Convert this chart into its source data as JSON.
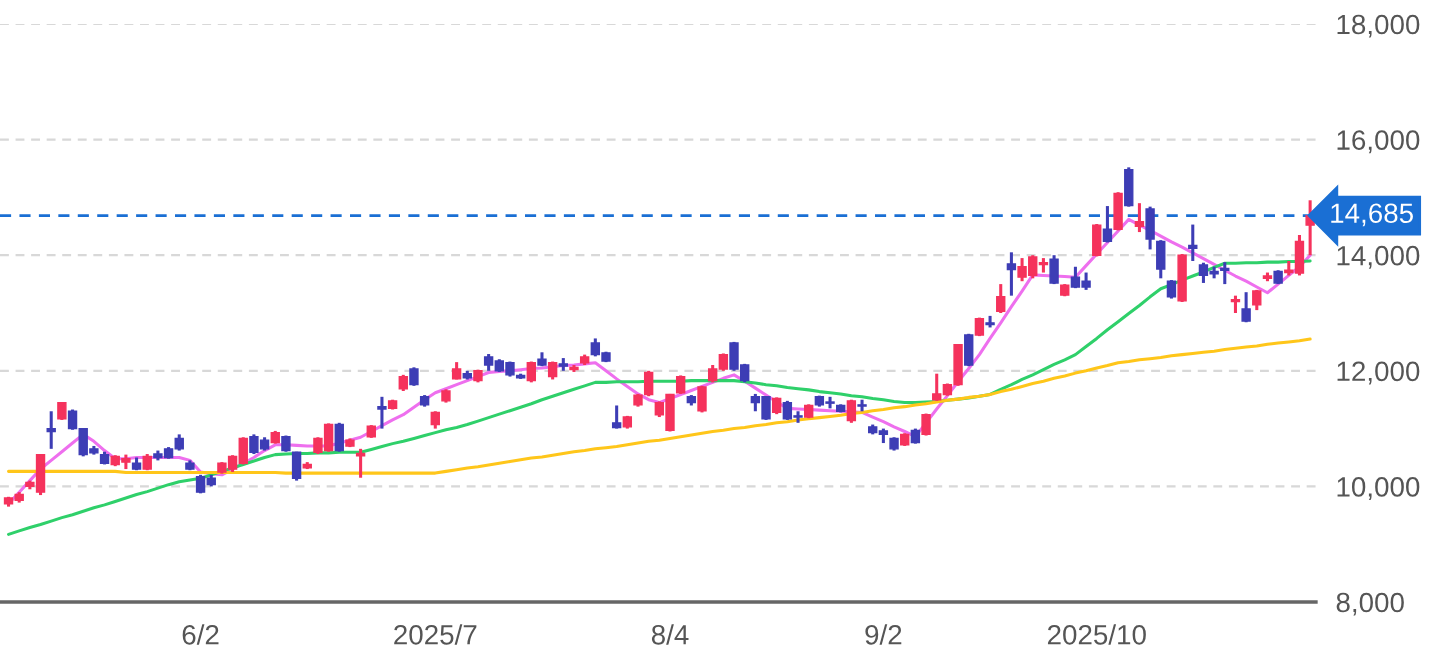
{
  "chart_data": {
    "type": "candlestick",
    "categories": [
      null,
      null,
      null,
      null,
      null,
      null,
      null,
      null,
      null,
      null,
      null,
      null,
      null,
      null,
      null,
      null,
      null,
      null,
      "6/2",
      null,
      null,
      null,
      null,
      null,
      null,
      null,
      null,
      null,
      null,
      null,
      null,
      null,
      null,
      null,
      null,
      null,
      null,
      null,
      null,
      null,
      "2025/7",
      null,
      null,
      null,
      null,
      null,
      null,
      null,
      null,
      null,
      null,
      null,
      null,
      null,
      null,
      null,
      null,
      null,
      null,
      null,
      null,
      null,
      "8/4",
      null,
      null,
      null,
      null,
      null,
      null,
      null,
      null,
      null,
      null,
      null,
      null,
      null,
      null,
      null,
      null,
      null,
      null,
      null,
      "9/2",
      null,
      null,
      null,
      null,
      null,
      null,
      null,
      null,
      null,
      null,
      null,
      null,
      null,
      null,
      null,
      null,
      null,
      null,
      null,
      "2025/10",
      null,
      null,
      null,
      null,
      null,
      null,
      null,
      null,
      null,
      null,
      null,
      null,
      null,
      null,
      null,
      null,
      null,
      null,
      null,
      null
    ],
    "ohlc": [
      [
        9700,
        9820,
        9650,
        9800
      ],
      [
        9760,
        9900,
        9720,
        9860
      ],
      [
        10000,
        10100,
        9950,
        10070
      ],
      [
        9900,
        10550,
        9850,
        10550
      ],
      [
        11000,
        11300,
        10650,
        10950
      ],
      [
        11170,
        11460,
        11150,
        11450
      ],
      [
        11300,
        11330,
        10980,
        11000
      ],
      [
        11000,
        11000,
        10520,
        10550
      ],
      [
        10650,
        10700,
        10550,
        10580
      ],
      [
        10550,
        10600,
        10380,
        10400
      ],
      [
        10380,
        10540,
        10350,
        10520
      ],
      [
        10420,
        10550,
        10300,
        10480
      ],
      [
        10400,
        10500,
        10280,
        10300
      ],
      [
        10300,
        10560,
        10280,
        10520
      ],
      [
        10560,
        10620,
        10450,
        10500
      ],
      [
        10650,
        10680,
        10480,
        10500
      ],
      [
        10830,
        10900,
        10620,
        10650
      ],
      [
        10400,
        10450,
        10280,
        10300
      ],
      [
        10170,
        10200,
        9880,
        9900
      ],
      [
        10140,
        10200,
        10000,
        10030
      ],
      [
        10250,
        10420,
        10220,
        10400
      ],
      [
        10300,
        10540,
        10250,
        10520
      ],
      [
        10400,
        10850,
        10380,
        10830
      ],
      [
        10860,
        10900,
        10560,
        10590
      ],
      [
        10800,
        10850,
        10620,
        10650
      ],
      [
        10760,
        10960,
        10740,
        10930
      ],
      [
        10860,
        10880,
        10600,
        10620
      ],
      [
        10590,
        10600,
        10100,
        10140
      ],
      [
        10320,
        10420,
        10300,
        10380
      ],
      [
        10590,
        10850,
        10560,
        10830
      ],
      [
        10620,
        11090,
        10600,
        11070
      ],
      [
        11070,
        11100,
        10600,
        10620
      ],
      [
        10700,
        10830,
        10680,
        10800
      ],
      [
        10530,
        10650,
        10150,
        10570
      ],
      [
        10860,
        11060,
        10840,
        11040
      ],
      [
        11380,
        11550,
        11000,
        11340
      ],
      [
        11350,
        11500,
        11330,
        11480
      ],
      [
        11690,
        11930,
        11650,
        11900
      ],
      [
        12030,
        12060,
        11740,
        11760
      ],
      [
        11550,
        11580,
        11380,
        11410
      ],
      [
        11070,
        11300,
        11000,
        11280
      ],
      [
        11480,
        11680,
        11450,
        11650
      ],
      [
        11860,
        12150,
        11850,
        12030
      ],
      [
        11950,
        12000,
        11850,
        11880
      ],
      [
        11830,
        12020,
        11800,
        12000
      ],
      [
        12240,
        12290,
        12000,
        12100
      ],
      [
        12170,
        12200,
        11980,
        12000
      ],
      [
        12140,
        12160,
        11900,
        11930
      ],
      [
        11920,
        11950,
        11860,
        11880
      ],
      [
        11830,
        12160,
        11800,
        12140
      ],
      [
        12200,
        12320,
        12080,
        12100
      ],
      [
        11900,
        12160,
        11850,
        12140
      ],
      [
        12120,
        12220,
        12000,
        12080
      ],
      [
        12020,
        12100,
        11980,
        12060
      ],
      [
        12140,
        12280,
        12100,
        12240
      ],
      [
        12480,
        12560,
        12250,
        12280
      ],
      [
        12310,
        12330,
        12150,
        12170
      ],
      [
        11100,
        11400,
        11000,
        11020
      ],
      [
        11030,
        11220,
        11000,
        11200
      ],
      [
        11410,
        11600,
        11380,
        11580
      ],
      [
        11590,
        12000,
        11560,
        11970
      ],
      [
        11240,
        11470,
        11200,
        11450
      ],
      [
        10970,
        11600,
        10950,
        11590
      ],
      [
        11620,
        11920,
        11600,
        11900
      ],
      [
        11550,
        11580,
        11400,
        11450
      ],
      [
        11310,
        11740,
        11280,
        11720
      ],
      [
        11830,
        12100,
        11800,
        12030
      ],
      [
        12030,
        12300,
        12000,
        12280
      ],
      [
        12480,
        12500,
        12000,
        12030
      ],
      [
        12100,
        12120,
        11800,
        11830
      ],
      [
        11550,
        11600,
        11300,
        11450
      ],
      [
        11550,
        11560,
        11150,
        11170
      ],
      [
        11280,
        11540,
        11250,
        11520
      ],
      [
        11450,
        11480,
        11150,
        11170
      ],
      [
        11220,
        11300,
        11100,
        11200
      ],
      [
        11200,
        11420,
        11180,
        11400
      ],
      [
        11550,
        11570,
        11380,
        11410
      ],
      [
        11460,
        11550,
        11350,
        11440
      ],
      [
        11400,
        11420,
        11280,
        11300
      ],
      [
        11140,
        11500,
        11100,
        11480
      ],
      [
        11410,
        11500,
        11300,
        11390
      ],
      [
        11030,
        11070,
        10900,
        10930
      ],
      [
        10960,
        11000,
        10750,
        10900
      ],
      [
        10830,
        10850,
        10620,
        10650
      ],
      [
        10720,
        10920,
        10700,
        10900
      ],
      [
        10970,
        11000,
        10740,
        10760
      ],
      [
        10900,
        11260,
        10880,
        11240
      ],
      [
        11500,
        11950,
        11480,
        11600
      ],
      [
        11590,
        11780,
        11570,
        11760
      ],
      [
        11760,
        12460,
        11740,
        12450
      ],
      [
        12620,
        12640,
        12080,
        12100
      ],
      [
        12620,
        12920,
        12600,
        12900
      ],
      [
        12830,
        12950,
        12750,
        12800
      ],
      [
        13030,
        13500,
        13000,
        13280
      ],
      [
        13850,
        14050,
        13300,
        13750
      ],
      [
        13620,
        13950,
        13550,
        13800
      ],
      [
        13650,
        14000,
        13600,
        13970
      ],
      [
        13840,
        13950,
        13700,
        13870
      ],
      [
        13930,
        14000,
        13500,
        13520
      ],
      [
        13310,
        13500,
        13290,
        13480
      ],
      [
        13620,
        13800,
        13430,
        13450
      ],
      [
        13550,
        13700,
        13400,
        13450
      ],
      [
        14000,
        14540,
        13980,
        14520
      ],
      [
        14450,
        14850,
        14220,
        14240
      ],
      [
        14450,
        15090,
        14430,
        15070
      ],
      [
        15480,
        15520,
        14840,
        14860
      ],
      [
        14500,
        14900,
        14400,
        14580
      ],
      [
        14800,
        14840,
        14100,
        14280
      ],
      [
        14240,
        14260,
        13600,
        13760
      ],
      [
        13550,
        13570,
        13250,
        13280
      ],
      [
        13210,
        14020,
        13190,
        14000
      ],
      [
        14170,
        14530,
        13900,
        14120
      ],
      [
        13830,
        13870,
        13520,
        13650
      ],
      [
        13720,
        13800,
        13600,
        13680
      ],
      [
        13770,
        13880,
        13500,
        13740
      ],
      [
        13200,
        13300,
        13000,
        13230
      ],
      [
        13070,
        13360,
        12840,
        12860
      ],
      [
        13140,
        13400,
        13050,
        13380
      ],
      [
        13600,
        13700,
        13550,
        13640
      ],
      [
        13720,
        13740,
        13500,
        13520
      ],
      [
        13700,
        13900,
        13650,
        13740
      ],
      [
        13690,
        14350,
        13650,
        14240
      ],
      [
        14520,
        14950,
        14000,
        14685
      ]
    ],
    "colors": [
      "#f5325c",
      "#f5325c",
      "#f5325c",
      "#f5325c",
      "#3d3db5",
      "#f5325c",
      "#3d3db5",
      "#3d3db5",
      "#3d3db5",
      "#3d3db5",
      "#f5325c",
      "#f5325c",
      "#3d3db5",
      "#f5325c",
      "#3d3db5",
      "#3d3db5",
      "#3d3db5",
      "#3d3db5",
      "#3d3db5",
      "#3d3db5",
      "#f5325c",
      "#f5325c",
      "#f5325c",
      "#3d3db5",
      "#3d3db5",
      "#f5325c",
      "#3d3db5",
      "#3d3db5",
      "#f5325c",
      "#f5325c",
      "#f5325c",
      "#3d3db5",
      "#f5325c",
      "#f5325c",
      "#f5325c",
      "#3d3db5",
      "#f5325c",
      "#f5325c",
      "#3d3db5",
      "#3d3db5",
      "#f5325c",
      "#f5325c",
      "#f5325c",
      "#3d3db5",
      "#f5325c",
      "#3d3db5",
      "#3d3db5",
      "#3d3db5",
      "#3d3db5",
      "#f5325c",
      "#3d3db5",
      "#f5325c",
      "#3d3db5",
      "#f5325c",
      "#f5325c",
      "#3d3db5",
      "#3d3db5",
      "#3d3db5",
      "#f5325c",
      "#f5325c",
      "#f5325c",
      "#f5325c",
      "#f5325c",
      "#f5325c",
      "#3d3db5",
      "#f5325c",
      "#f5325c",
      "#f5325c",
      "#3d3db5",
      "#3d3db5",
      "#3d3db5",
      "#3d3db5",
      "#f5325c",
      "#3d3db5",
      "#3d3db5",
      "#f5325c",
      "#3d3db5",
      "#3d3db5",
      "#3d3db5",
      "#f5325c",
      "#3d3db5",
      "#3d3db5",
      "#3d3db5",
      "#3d3db5",
      "#f5325c",
      "#3d3db5",
      "#f5325c",
      "#f5325c",
      "#f5325c",
      "#f5325c",
      "#3d3db5",
      "#f5325c",
      "#3d3db5",
      "#f5325c",
      "#3d3db5",
      "#f5325c",
      "#f5325c",
      "#f5325c",
      "#3d3db5",
      "#f5325c",
      "#3d3db5",
      "#3d3db5",
      "#f5325c",
      "#3d3db5",
      "#f5325c",
      "#3d3db5",
      "#f5325c",
      "#3d3db5",
      "#3d3db5",
      "#3d3db5",
      "#f5325c",
      "#3d3db5",
      "#3d3db5",
      "#3d3db5",
      "#3d3db5",
      "#f5325c",
      "#3d3db5",
      "#f5325c",
      "#f5325c",
      "#3d3db5",
      "#f5325c",
      "#f5325c",
      "#f5325c"
    ],
    "series": [
      {
        "type": "line",
        "color": "#ee6fee",
        "values": [
          9700,
          9900,
          10100,
          10300,
          10450,
          10600,
          10750,
          10900,
          10780,
          10620,
          10480,
          10480,
          10500,
          10500,
          10500,
          10500,
          10500,
          10450,
          10250,
          10220,
          10200,
          10300,
          10400,
          10500,
          10620,
          10720,
          10720,
          10710,
          10700,
          10700,
          10700,
          10750,
          10800,
          10850,
          10950,
          11050,
          11150,
          11240,
          11370,
          11500,
          11620,
          11690,
          11760,
          11830,
          11900,
          11970,
          11990,
          12000,
          12020,
          12040,
          12050,
          12070,
          12090,
          12100,
          12120,
          12140,
          12000,
          11860,
          11730,
          11600,
          11500,
          11450,
          11520,
          11590,
          11660,
          11730,
          11800,
          11870,
          11930,
          11820,
          11700,
          11580,
          11460,
          11350,
          11340,
          11330,
          11320,
          11310,
          11300,
          11290,
          11280,
          11200,
          11120,
          11030,
          10950,
          10860,
          11100,
          11340,
          11570,
          11810,
          12040,
          12280,
          12560,
          12830,
          13110,
          13380,
          13660,
          13650,
          13640,
          13630,
          13620,
          13820,
          14020,
          14220,
          14420,
          14620,
          14520,
          14430,
          14330,
          14230,
          14140,
          14040,
          13940,
          13840,
          13740,
          13640,
          13550,
          13450,
          13350,
          13500,
          13650,
          13800,
          14000
        ]
      },
      {
        "type": "line",
        "color": "#2fd06a",
        "values": [
          9170,
          9230,
          9290,
          9340,
          9400,
          9460,
          9510,
          9570,
          9630,
          9680,
          9740,
          9800,
          9860,
          9910,
          9970,
          10030,
          10080,
          10110,
          10140,
          10200,
          10260,
          10320,
          10380,
          10440,
          10500,
          10550,
          10560,
          10570,
          10570,
          10580,
          10580,
          10590,
          10590,
          10590,
          10640,
          10690,
          10740,
          10780,
          10830,
          10880,
          10930,
          10980,
          11020,
          11070,
          11130,
          11190,
          11250,
          11310,
          11370,
          11430,
          11500,
          11560,
          11620,
          11680,
          11740,
          11800,
          11800,
          11810,
          11810,
          11810,
          11820,
          11820,
          11820,
          11820,
          11830,
          11830,
          11830,
          11830,
          11830,
          11810,
          11790,
          11760,
          11740,
          11710,
          11690,
          11670,
          11640,
          11620,
          11600,
          11570,
          11550,
          11520,
          11500,
          11470,
          11450,
          11450,
          11460,
          11470,
          11490,
          11510,
          11530,
          11560,
          11590,
          11680,
          11760,
          11850,
          11930,
          12020,
          12110,
          12190,
          12280,
          12420,
          12560,
          12710,
          12850,
          12990,
          13130,
          13280,
          13420,
          13490,
          13570,
          13640,
          13710,
          13790,
          13860,
          13860,
          13870,
          13870,
          13880,
          13880,
          13890,
          13890,
          13900
        ]
      },
      {
        "type": "line",
        "color": "#ffc61a",
        "values": [
          10260,
          10260,
          10260,
          10260,
          10260,
          10260,
          10260,
          10260,
          10260,
          10260,
          10260,
          10240,
          10240,
          10240,
          10240,
          10240,
          10240,
          10240,
          10240,
          10240,
          10240,
          10240,
          10240,
          10240,
          10240,
          10240,
          10230,
          10230,
          10230,
          10230,
          10230,
          10230,
          10230,
          10230,
          10230,
          10230,
          10230,
          10230,
          10230,
          10230,
          10230,
          10260,
          10290,
          10320,
          10340,
          10370,
          10400,
          10430,
          10460,
          10490,
          10510,
          10540,
          10570,
          10600,
          10620,
          10650,
          10670,
          10690,
          10720,
          10750,
          10780,
          10800,
          10830,
          10860,
          10890,
          10920,
          10950,
          10970,
          11000,
          11020,
          11050,
          11070,
          11100,
          11120,
          11150,
          11170,
          11190,
          11210,
          11230,
          11260,
          11280,
          11310,
          11330,
          11360,
          11380,
          11410,
          11430,
          11460,
          11490,
          11510,
          11540,
          11560,
          11590,
          11640,
          11680,
          11730,
          11780,
          11820,
          11870,
          11910,
          11960,
          12000,
          12050,
          12090,
          12140,
          12160,
          12190,
          12210,
          12230,
          12260,
          12280,
          12300,
          12320,
          12340,
          12370,
          12390,
          12410,
          12430,
          12460,
          12480,
          12500,
          12520,
          12550
        ]
      }
    ],
    "ylim": [
      8000,
      18000
    ],
    "yticks": [
      {
        "value": 8000,
        "label": "8,000"
      },
      {
        "value": 10000,
        "label": "10,000"
      },
      {
        "value": 12000,
        "label": "12,000"
      },
      {
        "value": 14000,
        "label": "14,000"
      },
      {
        "value": 16000,
        "label": "16,000"
      },
      {
        "value": 18000,
        "label": "18,000"
      }
    ],
    "grid": "y",
    "ref_lines": [
      {
        "axis": "y",
        "value": 14685,
        "label": "14,685",
        "color": "#1a6fd4",
        "line_style": "dashed"
      }
    ]
  }
}
